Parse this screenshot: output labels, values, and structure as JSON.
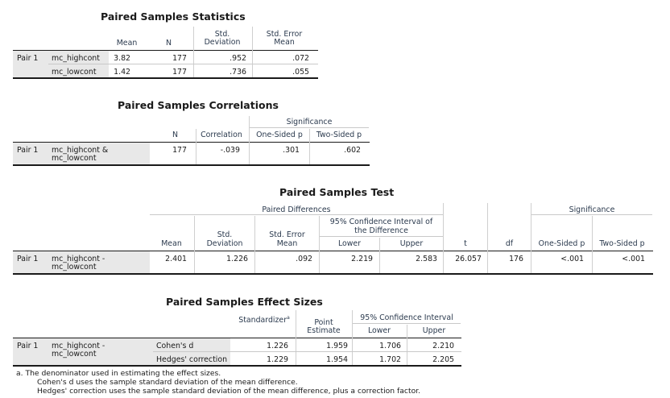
{
  "stats": {
    "title": "Paired Samples Statistics",
    "headers": {
      "mean": "Mean",
      "n": "N",
      "sd_l1": "Std.",
      "sd_l2": "Deviation",
      "se_l1": "Std. Error",
      "se_l2": "Mean"
    },
    "pair_label": "Pair 1",
    "rows": [
      {
        "var": "mc_highcont",
        "mean": "3.82",
        "n": "177",
        "sd": ".952",
        "se": ".072"
      },
      {
        "var": "mc_lowcont",
        "mean": "1.42",
        "n": "177",
        "sd": ".736",
        "se": ".055"
      }
    ]
  },
  "corr": {
    "title": "Paired Samples Correlations",
    "headers": {
      "significance": "Significance",
      "n": "N",
      "correlation": "Correlation",
      "one_sided": "One-Sided p",
      "two_sided": "Two-Sided p"
    },
    "pair_label": "Pair 1",
    "var_l1": "mc_highcont &",
    "var_l2": "mc_lowcont",
    "n": "177",
    "correlation": "-.039",
    "one_sided": ".301",
    "two_sided": ".602"
  },
  "test": {
    "title": "Paired Samples Test",
    "headers": {
      "paired_differences": "Paired Differences",
      "significance": "Significance",
      "ci_l1": "95% Confidence Interval of",
      "ci_l2": "the Difference",
      "mean": "Mean",
      "sd_l1": "Std.",
      "sd_l2": "Deviation",
      "se_l1": "Std. Error",
      "se_l2": "Mean",
      "lower": "Lower",
      "upper": "Upper",
      "t": "t",
      "df": "df",
      "one_sided": "One-Sided p",
      "two_sided": "Two-Sided p"
    },
    "pair_label": "Pair 1",
    "var_l1": "mc_highcont -",
    "var_l2": "mc_lowcont",
    "mean": "2.401",
    "sd": "1.226",
    "se": ".092",
    "lower": "2.219",
    "upper": "2.583",
    "t": "26.057",
    "df": "176",
    "one_sided": "<.001",
    "two_sided": "<.001"
  },
  "effect": {
    "title": "Paired Samples Effect Sizes",
    "headers": {
      "standardizer": "Standardizer",
      "sup": "a",
      "point_l1": "Point",
      "point_l2": "Estimate",
      "ci": "95% Confidence Interval",
      "lower": "Lower",
      "upper": "Upper"
    },
    "pair_label": "Pair 1",
    "var_l1": "mc_highcont -",
    "var_l2": "mc_lowcont",
    "rows": [
      {
        "label": "Cohen's d",
        "standardizer": "1.226",
        "point": "1.959",
        "lower": "1.706",
        "upper": "2.210"
      },
      {
        "label": "Hedges' correction",
        "standardizer": "1.229",
        "point": "1.954",
        "lower": "1.702",
        "upper": "2.205"
      }
    ],
    "footnotes": [
      "a. The denominator used in estimating the effect sizes.",
      "Cohen's d uses the sample standard deviation of the mean difference.",
      "Hedges' correction uses the sample standard deviation of the mean difference, plus a correction factor."
    ]
  }
}
